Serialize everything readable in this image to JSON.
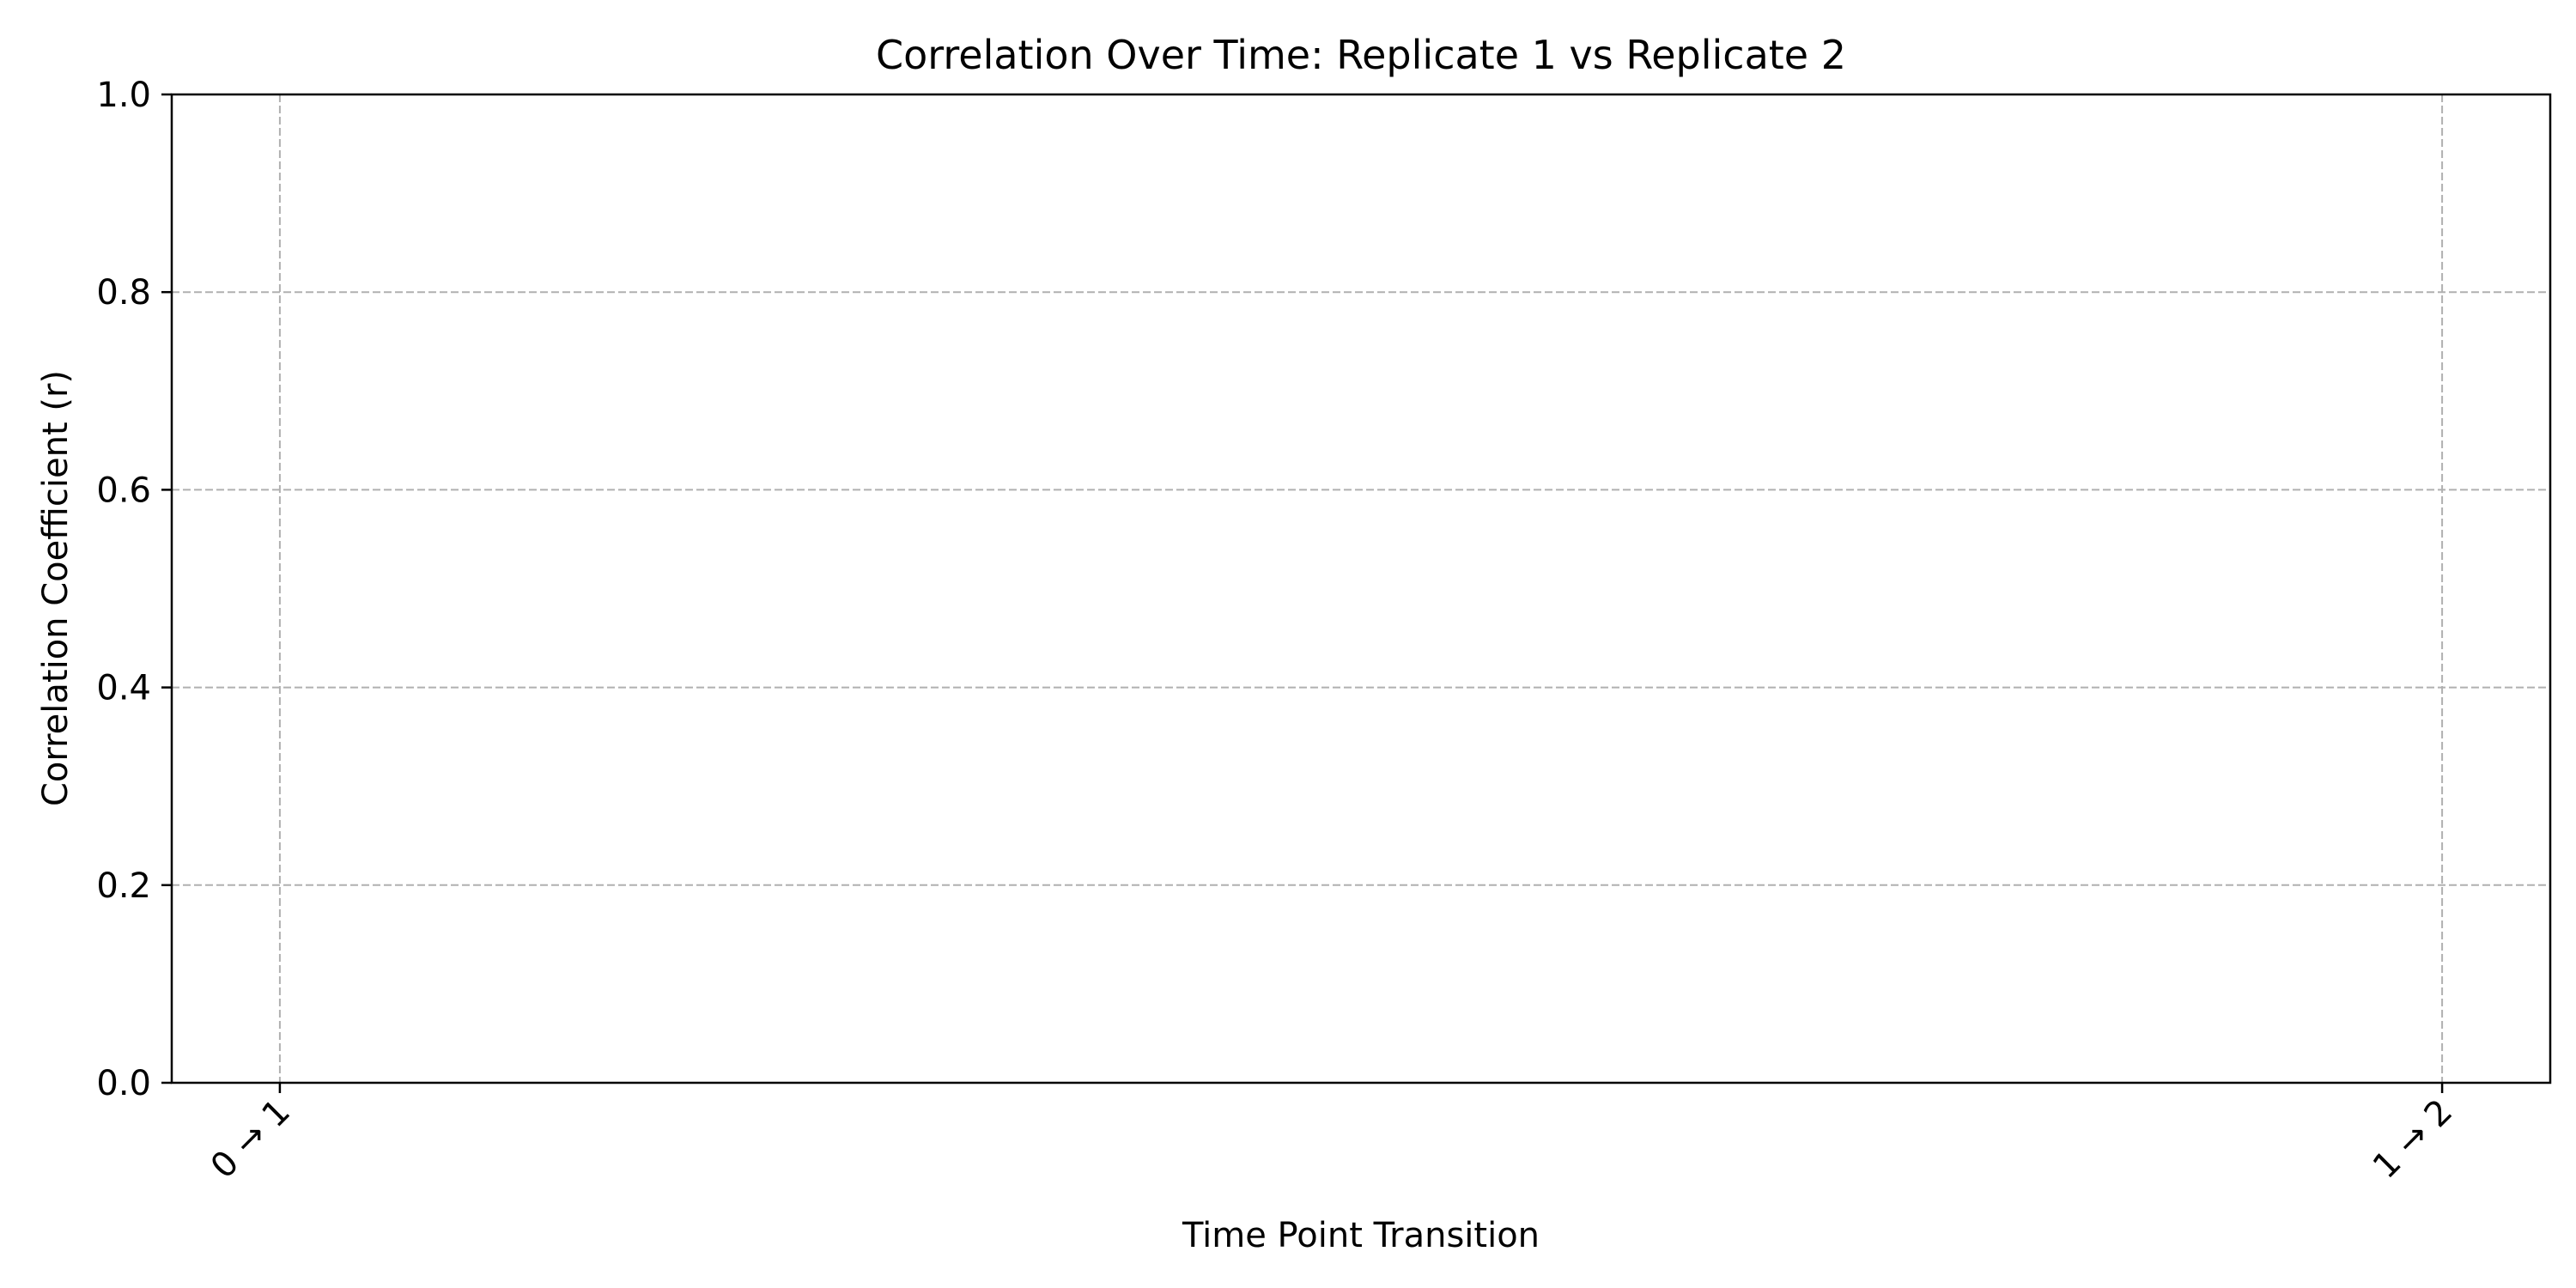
{
  "chart_data": {
    "type": "line",
    "title": "Correlation Over Time: Replicate 1 vs Replicate 2",
    "xlabel": "Time Point Transition",
    "ylabel": "Correlation Coefficient (r)",
    "categories": [
      "0 → 1",
      "1 → 2"
    ],
    "series": [],
    "ylim": [
      0.0,
      1.0
    ],
    "yticks": [
      "0.0",
      "0.2",
      "0.4",
      "0.6",
      "0.8",
      "1.0"
    ],
    "grid": true,
    "legend": "none",
    "colors": {
      "grid": "#b0b0b0",
      "axis": "#000000",
      "text": "#000000"
    }
  }
}
